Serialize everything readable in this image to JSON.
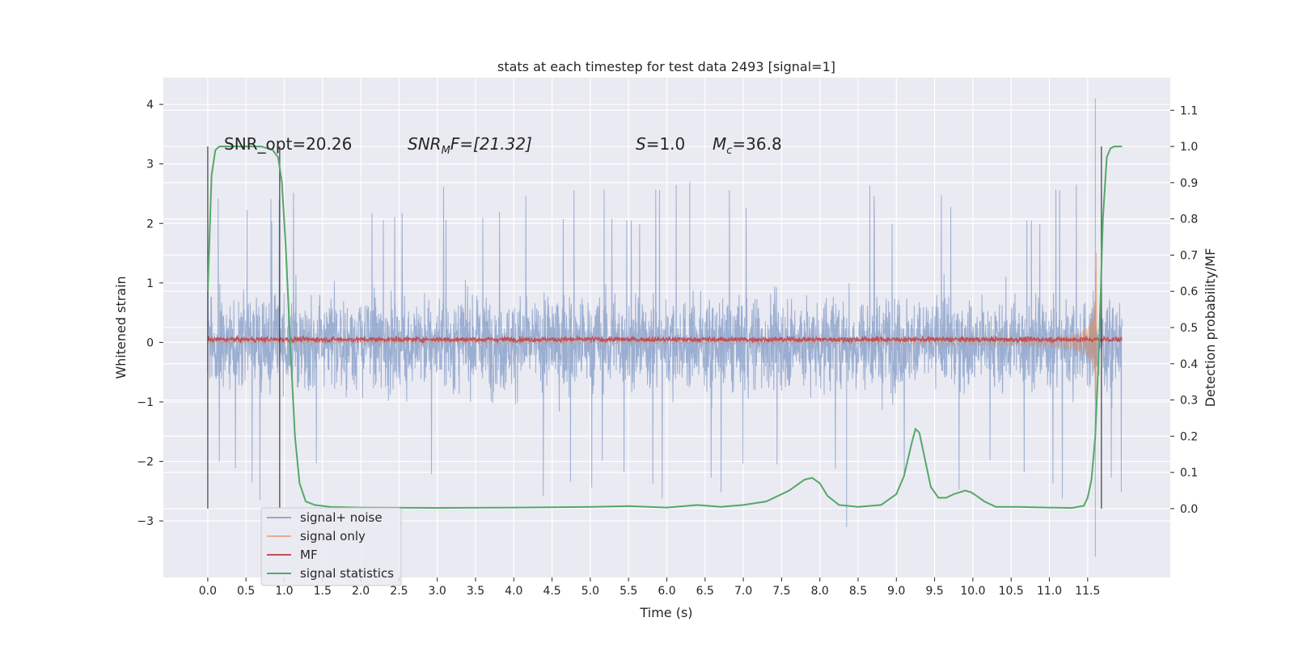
{
  "chart_data": {
    "type": "line",
    "title": "stats at each timestep for test data 2493 [signal=1]",
    "xlabel": "Time (s)",
    "ylabel_left": "Whitened strain",
    "ylabel_right": "Detection probability/MF",
    "xlim": [
      -0.58,
      12.58
    ],
    "ylim_left": [
      -3.95,
      4.45
    ],
    "ylim_right": [
      -0.19,
      1.19
    ],
    "x_ticks": [
      0.0,
      0.5,
      1.0,
      1.5,
      2.0,
      2.5,
      3.0,
      3.5,
      4.0,
      4.5,
      5.0,
      5.5,
      6.0,
      6.5,
      7.0,
      7.5,
      8.0,
      8.5,
      9.0,
      9.5,
      10.0,
      10.5,
      11.0,
      11.5
    ],
    "x_tick_labels": [
      "0.0",
      "0.5",
      "1.0",
      "1.5",
      "2.0",
      "2.5",
      "3.0",
      "3.5",
      "4.0",
      "4.5",
      "5.0",
      "5.5",
      "6.0",
      "6.5",
      "7.0",
      "7.5",
      "8.0",
      "8.5",
      "9.0",
      "9.5",
      "10.0",
      "10.5",
      "11.0",
      "11.5"
    ],
    "y_left_ticks": [
      -3,
      -2,
      -1,
      0,
      1,
      2,
      3,
      4
    ],
    "y_left_tick_labels": [
      "−3",
      "−2",
      "−1",
      "0",
      "1",
      "2",
      "3",
      "4"
    ],
    "y_right_ticks": [
      0.0,
      0.1,
      0.2,
      0.3,
      0.4,
      0.5,
      0.6,
      0.7,
      0.8,
      0.9,
      1.0,
      1.1
    ],
    "y_right_tick_labels": [
      "0.0",
      "0.1",
      "0.2",
      "0.3",
      "0.4",
      "0.5",
      "0.6",
      "0.7",
      "0.8",
      "0.9",
      "1.0",
      "1.1"
    ],
    "grid": true,
    "legend_position": "bottom-left",
    "annotations": {
      "snr_opt": "SNR_opt=20.26",
      "snr_mf_main": "SNR",
      "snr_mf_sub": "M",
      "snr_mf_rest": "F=[21.32]",
      "s_var": "S",
      "s_rest": "=1.0",
      "mc_var": "M",
      "mc_sub": "c",
      "mc_rest": "=36.8"
    },
    "vertical_lines": [
      0.0,
      0.94,
      11.68
    ],
    "series": [
      {
        "name": "signal+ noise",
        "color": "#4c72b0",
        "style": "noise",
        "x_range": [
          0.0,
          11.95
        ],
        "envelope": [
          -1.6,
          1.6
        ],
        "peak_range": [
          -2.7,
          2.7
        ],
        "spikes": [
          [
            6.3,
            2.7
          ],
          [
            8.35,
            -3.1
          ],
          [
            11.6,
            4.1
          ],
          [
            11.6,
            -3.6
          ]
        ]
      },
      {
        "name": "signal only",
        "color": "#dd8452",
        "style": "chirp",
        "x_range": [
          0.0,
          11.65
        ],
        "peak": 3.6,
        "trough": -3.5,
        "merger_time": 11.62
      },
      {
        "name": "MF",
        "color": "#c44e52",
        "style": "mf",
        "x_range": [
          0.0,
          11.95
        ],
        "mean": 0.05,
        "amplitude": 0.06
      },
      {
        "name": "signal statistics",
        "color": "#55a868",
        "axis": "right",
        "x": [
          0.0,
          0.05,
          0.1,
          0.15,
          0.2,
          0.3,
          0.5,
          0.7,
          0.85,
          0.92,
          0.97,
          1.02,
          1.08,
          1.14,
          1.2,
          1.28,
          1.4,
          1.6,
          2.0,
          3.0,
          4.0,
          5.0,
          5.5,
          6.0,
          6.4,
          6.7,
          7.0,
          7.3,
          7.6,
          7.8,
          7.9,
          8.0,
          8.1,
          8.25,
          8.5,
          8.8,
          9.0,
          9.1,
          9.2,
          9.25,
          9.3,
          9.38,
          9.45,
          9.55,
          9.65,
          9.75,
          9.9,
          9.98,
          10.05,
          10.15,
          10.3,
          10.6,
          11.0,
          11.3,
          11.45,
          11.5,
          11.55,
          11.6,
          11.65,
          11.7,
          11.75,
          11.8,
          11.85,
          11.95
        ],
        "y": [
          0.6,
          0.92,
          0.99,
          1.0,
          1.0,
          1.0,
          1.0,
          1.0,
          0.99,
          0.97,
          0.9,
          0.72,
          0.45,
          0.2,
          0.07,
          0.02,
          0.01,
          0.005,
          0.003,
          0.002,
          0.003,
          0.005,
          0.007,
          0.003,
          0.01,
          0.005,
          0.01,
          0.02,
          0.05,
          0.08,
          0.085,
          0.07,
          0.035,
          0.01,
          0.005,
          0.01,
          0.04,
          0.09,
          0.18,
          0.22,
          0.21,
          0.13,
          0.06,
          0.03,
          0.03,
          0.04,
          0.05,
          0.045,
          0.035,
          0.02,
          0.005,
          0.005,
          0.003,
          0.002,
          0.008,
          0.03,
          0.08,
          0.2,
          0.45,
          0.8,
          0.97,
          0.995,
          1.0,
          1.0
        ]
      }
    ]
  }
}
